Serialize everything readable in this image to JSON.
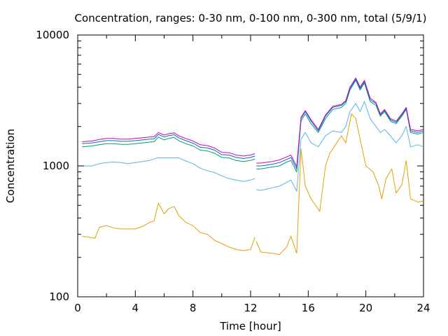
{
  "chart_data": {
    "type": "line",
    "title": "Concentration, ranges: 0-30 nm, 0-100 nm, 0-300 nm, total (5/9/1)",
    "xlabel": "Time [hour]",
    "ylabel": "Concentration",
    "xlim": [
      0,
      24
    ],
    "ylim": [
      100,
      10000
    ],
    "yscale": "log",
    "grid": false,
    "legend": "none",
    "x_ticks": [
      0,
      4,
      8,
      12,
      16,
      20,
      24
    ],
    "y_ticks": [
      100,
      1000,
      10000
    ],
    "x_tick_labels": [
      "0",
      "4",
      "8",
      "12",
      "16",
      "20",
      "24"
    ],
    "y_tick_labels": [
      "100",
      "1000",
      "10000"
    ],
    "series": [
      {
        "color": "#e69f00",
        "points": [
          [
            0.3,
            290
          ],
          [
            0.8,
            285
          ],
          [
            1.2,
            280
          ],
          [
            1.5,
            340
          ],
          [
            2,
            350
          ],
          [
            2.5,
            335
          ],
          [
            3,
            330
          ],
          [
            3.5,
            330
          ],
          [
            4,
            330
          ],
          [
            4.5,
            345
          ],
          [
            5,
            370
          ],
          [
            5.3,
            380
          ],
          [
            5.6,
            520
          ],
          [
            6,
            430
          ],
          [
            6.3,
            470
          ],
          [
            6.7,
            490
          ],
          [
            7,
            420
          ],
          [
            7.5,
            370
          ],
          [
            8,
            350
          ],
          [
            8.5,
            310
          ],
          [
            9,
            300
          ],
          [
            9.5,
            270
          ],
          [
            10,
            255
          ],
          [
            10.5,
            240
          ],
          [
            11,
            230
          ],
          [
            11.5,
            225
          ],
          [
            12,
            230
          ],
          [
            12.3,
            285
          ],
          null,
          [
            12.4,
            265
          ],
          [
            12.7,
            220
          ],
          [
            13,
            218
          ],
          [
            13.5,
            215
          ],
          [
            14,
            210
          ],
          [
            14.5,
            240
          ],
          [
            14.8,
            290
          ],
          [
            15.2,
            215
          ],
          [
            15.5,
            1350
          ],
          [
            15.8,
            700
          ],
          [
            16.2,
            560
          ],
          [
            16.8,
            450
          ],
          [
            17.2,
            1000
          ],
          [
            17.5,
            1250
          ],
          [
            17.8,
            1400
          ],
          [
            18.3,
            1700
          ],
          [
            18.6,
            1500
          ],
          [
            19,
            2500
          ],
          [
            19.3,
            2300
          ],
          [
            19.6,
            1600
          ],
          [
            20,
            1000
          ],
          [
            20.5,
            900
          ],
          [
            20.9,
            700
          ],
          [
            21.1,
            560
          ],
          [
            21.4,
            800
          ],
          [
            21.8,
            950
          ],
          [
            22.1,
            620
          ],
          [
            22.5,
            720
          ],
          [
            22.8,
            1100
          ],
          [
            23.1,
            560
          ],
          [
            23.6,
            530
          ],
          [
            24,
            540
          ]
        ]
      },
      {
        "color": "#56b4e9",
        "points": [
          [
            0.3,
            1000
          ],
          [
            1,
            1000
          ],
          [
            1.5,
            1040
          ],
          [
            2,
            1060
          ],
          [
            2.5,
            1070
          ],
          [
            3,
            1060
          ],
          [
            3.5,
            1040
          ],
          [
            4,
            1060
          ],
          [
            4.5,
            1080
          ],
          [
            5,
            1100
          ],
          [
            5.5,
            1150
          ],
          [
            6,
            1150
          ],
          [
            6.5,
            1150
          ],
          [
            7,
            1150
          ],
          [
            7.5,
            1090
          ],
          [
            8,
            1040
          ],
          [
            8.5,
            960
          ],
          [
            9,
            920
          ],
          [
            9.5,
            890
          ],
          [
            10,
            840
          ],
          [
            10.5,
            800
          ],
          [
            11,
            780
          ],
          [
            11.5,
            760
          ],
          [
            12,
            780
          ],
          [
            12.3,
            800
          ],
          null,
          [
            12.4,
            660
          ],
          [
            12.7,
            650
          ],
          [
            13,
            660
          ],
          [
            13.5,
            680
          ],
          [
            14,
            700
          ],
          [
            14.5,
            750
          ],
          [
            14.8,
            780
          ],
          [
            15.2,
            640
          ],
          [
            15.5,
            1600
          ],
          [
            15.8,
            1800
          ],
          [
            16.2,
            1500
          ],
          [
            16.7,
            1400
          ],
          [
            17.2,
            1700
          ],
          [
            17.7,
            1850
          ],
          [
            18.3,
            1800
          ],
          [
            18.6,
            2000
          ],
          [
            18.9,
            2600
          ],
          [
            19.3,
            3000
          ],
          [
            19.6,
            2600
          ],
          [
            19.9,
            3100
          ],
          [
            20.3,
            2300
          ],
          [
            20.7,
            2000
          ],
          [
            21,
            1800
          ],
          [
            21.3,
            1900
          ],
          [
            21.7,
            1700
          ],
          [
            22.1,
            1500
          ],
          [
            22.5,
            1700
          ],
          [
            22.8,
            2000
          ],
          [
            23.1,
            1400
          ],
          [
            23.6,
            1450
          ],
          [
            24,
            1400
          ]
        ]
      },
      {
        "color": "#009e73",
        "points": [
          [
            0.3,
            1400
          ],
          [
            1,
            1420
          ],
          [
            1.5,
            1450
          ],
          [
            2,
            1480
          ],
          [
            2.5,
            1480
          ],
          [
            3,
            1460
          ],
          [
            3.5,
            1460
          ],
          [
            4,
            1480
          ],
          [
            4.5,
            1500
          ],
          [
            5,
            1520
          ],
          [
            5.3,
            1530
          ],
          [
            5.6,
            1660
          ],
          [
            6,
            1580
          ],
          [
            6.3,
            1620
          ],
          [
            6.7,
            1650
          ],
          [
            7,
            1560
          ],
          [
            7.5,
            1480
          ],
          [
            8,
            1420
          ],
          [
            8.5,
            1320
          ],
          [
            9,
            1300
          ],
          [
            9.5,
            1250
          ],
          [
            10,
            1160
          ],
          [
            10.5,
            1150
          ],
          [
            11,
            1100
          ],
          [
            11.5,
            1080
          ],
          [
            12,
            1100
          ],
          [
            12.3,
            1130
          ],
          null,
          [
            12.4,
            950
          ],
          [
            12.7,
            950
          ],
          [
            13,
            960
          ],
          [
            13.5,
            980
          ],
          [
            14,
            1000
          ],
          [
            14.5,
            1070
          ],
          [
            14.8,
            1100
          ],
          [
            15.2,
            900
          ],
          [
            15.5,
            2200
          ],
          [
            15.8,
            2500
          ],
          [
            16.2,
            2100
          ],
          [
            16.7,
            1800
          ],
          [
            17.2,
            2300
          ],
          [
            17.7,
            2700
          ],
          [
            18.3,
            2800
          ],
          [
            18.6,
            3000
          ],
          [
            18.9,
            3800
          ],
          [
            19.3,
            4500
          ],
          [
            19.6,
            3800
          ],
          [
            19.9,
            4300
          ],
          [
            20.3,
            3100
          ],
          [
            20.7,
            2900
          ],
          [
            21,
            2400
          ],
          [
            21.3,
            2600
          ],
          [
            21.7,
            2200
          ],
          [
            22.1,
            2100
          ],
          [
            22.5,
            2400
          ],
          [
            22.8,
            2700
          ],
          [
            23.1,
            1800
          ],
          [
            23.6,
            1750
          ],
          [
            24,
            1800
          ]
        ]
      },
      {
        "color": "#0072b2",
        "points": [
          [
            0.3,
            1480
          ],
          [
            1,
            1500
          ],
          [
            1.5,
            1530
          ],
          [
            2,
            1560
          ],
          [
            2.5,
            1560
          ],
          [
            3,
            1540
          ],
          [
            3.5,
            1540
          ],
          [
            4,
            1560
          ],
          [
            4.5,
            1580
          ],
          [
            5,
            1600
          ],
          [
            5.3,
            1610
          ],
          [
            5.6,
            1740
          ],
          [
            6,
            1660
          ],
          [
            6.3,
            1700
          ],
          [
            6.7,
            1730
          ],
          [
            7,
            1640
          ],
          [
            7.5,
            1560
          ],
          [
            8,
            1490
          ],
          [
            8.5,
            1390
          ],
          [
            9,
            1370
          ],
          [
            9.5,
            1320
          ],
          [
            10,
            1220
          ],
          [
            10.5,
            1210
          ],
          [
            11,
            1160
          ],
          [
            11.5,
            1140
          ],
          [
            12,
            1160
          ],
          [
            12.3,
            1190
          ],
          null,
          [
            12.4,
            1000
          ],
          [
            12.7,
            1000
          ],
          [
            13,
            1010
          ],
          [
            13.5,
            1030
          ],
          [
            14,
            1060
          ],
          [
            14.5,
            1120
          ],
          [
            14.8,
            1160
          ],
          [
            15.2,
            950
          ],
          [
            15.5,
            2300
          ],
          [
            15.8,
            2600
          ],
          [
            16.2,
            2200
          ],
          [
            16.7,
            1850
          ],
          [
            17.2,
            2400
          ],
          [
            17.7,
            2800
          ],
          [
            18.3,
            2900
          ],
          [
            18.6,
            3100
          ],
          [
            18.9,
            3900
          ],
          [
            19.3,
            4600
          ],
          [
            19.6,
            3900
          ],
          [
            19.9,
            4400
          ],
          [
            20.3,
            3200
          ],
          [
            20.7,
            3000
          ],
          [
            21,
            2450
          ],
          [
            21.3,
            2650
          ],
          [
            21.7,
            2250
          ],
          [
            22.1,
            2150
          ],
          [
            22.5,
            2450
          ],
          [
            22.8,
            2750
          ],
          [
            23.1,
            1850
          ],
          [
            23.6,
            1800
          ],
          [
            24,
            1850
          ]
        ]
      },
      {
        "color": "#cc00cc",
        "points": [
          [
            0.3,
            1530
          ],
          [
            1,
            1550
          ],
          [
            1.5,
            1590
          ],
          [
            2,
            1620
          ],
          [
            2.5,
            1620
          ],
          [
            3,
            1600
          ],
          [
            3.5,
            1600
          ],
          [
            4,
            1620
          ],
          [
            4.5,
            1640
          ],
          [
            5,
            1660
          ],
          [
            5.3,
            1670
          ],
          [
            5.6,
            1800
          ],
          [
            6,
            1720
          ],
          [
            6.3,
            1760
          ],
          [
            6.7,
            1790
          ],
          [
            7,
            1700
          ],
          [
            7.5,
            1620
          ],
          [
            8,
            1550
          ],
          [
            8.5,
            1450
          ],
          [
            9,
            1430
          ],
          [
            9.5,
            1370
          ],
          [
            10,
            1270
          ],
          [
            10.5,
            1260
          ],
          [
            11,
            1210
          ],
          [
            11.5,
            1190
          ],
          [
            12,
            1210
          ],
          [
            12.3,
            1240
          ],
          null,
          [
            12.4,
            1050
          ],
          [
            12.7,
            1050
          ],
          [
            13,
            1060
          ],
          [
            13.5,
            1080
          ],
          [
            14,
            1110
          ],
          [
            14.5,
            1170
          ],
          [
            14.8,
            1210
          ],
          [
            15.2,
            990
          ],
          [
            15.5,
            2350
          ],
          [
            15.8,
            2650
          ],
          [
            16.2,
            2250
          ],
          [
            16.7,
            1900
          ],
          [
            17.2,
            2450
          ],
          [
            17.7,
            2850
          ],
          [
            18.3,
            2950
          ],
          [
            18.6,
            3150
          ],
          [
            18.9,
            4000
          ],
          [
            19.3,
            4700
          ],
          [
            19.6,
            4000
          ],
          [
            19.9,
            4500
          ],
          [
            20.3,
            3300
          ],
          [
            20.7,
            3050
          ],
          [
            21,
            2500
          ],
          [
            21.3,
            2700
          ],
          [
            21.7,
            2300
          ],
          [
            22.1,
            2200
          ],
          [
            22.5,
            2500
          ],
          [
            22.8,
            2800
          ],
          [
            23.1,
            1900
          ],
          [
            23.6,
            1850
          ],
          [
            24,
            1900
          ]
        ]
      }
    ]
  }
}
